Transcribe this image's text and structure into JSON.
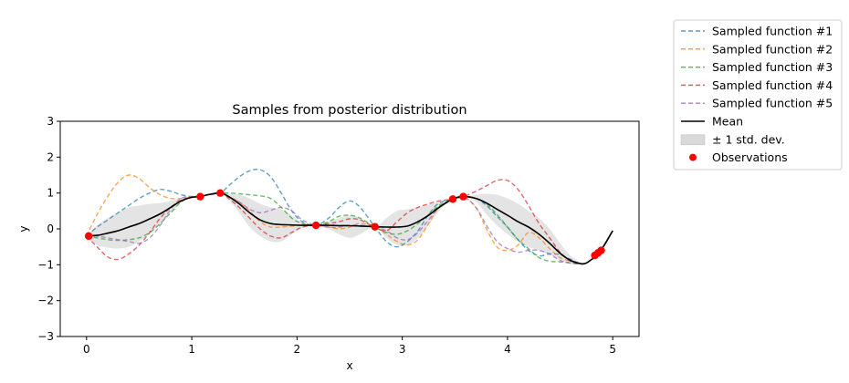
{
  "chart_data": {
    "type": "line",
    "title": "Samples from posterior distribution",
    "xlabel": "x",
    "ylabel": "y",
    "xlim": [
      -0.25,
      5.25
    ],
    "ylim": [
      -3,
      3
    ],
    "x_ticks": [
      0,
      1,
      2,
      3,
      4,
      5
    ],
    "y_ticks": [
      -3,
      -2,
      -1,
      0,
      1,
      2,
      3
    ],
    "grid": false,
    "legend_position": "outside-top-right",
    "x": [
      0,
      0.1,
      0.2,
      0.3,
      0.4,
      0.5,
      0.6,
      0.7,
      0.8,
      0.9,
      1.0,
      1.08,
      1.15,
      1.27,
      1.35,
      1.45,
      1.55,
      1.65,
      1.75,
      1.85,
      1.95,
      2.05,
      2.18,
      2.3,
      2.4,
      2.5,
      2.6,
      2.74,
      2.85,
      2.95,
      3.05,
      3.15,
      3.25,
      3.35,
      3.48,
      3.58,
      3.7,
      3.8,
      3.9,
      4.0,
      4.1,
      4.2,
      4.3,
      4.4,
      4.5,
      4.6,
      4.7,
      4.75,
      4.8,
      4.85,
      4.88,
      4.92,
      5.0
    ],
    "series": [
      {
        "name": "Sampled function #1",
        "color": "#1f77b4",
        "style": "dashed",
        "values": [
          -0.2,
          0.05,
          0.25,
          0.45,
          0.65,
          0.85,
          1.0,
          1.1,
          1.05,
          0.95,
          0.9,
          0.9,
          0.95,
          1.0,
          1.2,
          1.45,
          1.62,
          1.65,
          1.45,
          1.0,
          0.5,
          0.2,
          0.1,
          0.3,
          0.6,
          0.78,
          0.6,
          0.05,
          -0.35,
          -0.5,
          -0.35,
          -0.05,
          0.4,
          0.72,
          0.83,
          0.9,
          0.85,
          0.65,
          0.35,
          0.05,
          -0.3,
          -0.6,
          -0.75,
          -0.7,
          -0.72,
          -0.85,
          -0.98,
          -0.95,
          -0.85,
          -0.75,
          -0.6,
          -0.45,
          -0.05
        ]
      },
      {
        "name": "Sampled function #2",
        "color": "#ff7f0e",
        "style": "dashed",
        "values": [
          -0.2,
          0.4,
          0.9,
          1.3,
          1.5,
          1.4,
          1.15,
          0.95,
          0.85,
          0.85,
          0.88,
          0.9,
          0.95,
          1.0,
          0.9,
          0.75,
          0.5,
          0.2,
          0.05,
          0.05,
          0.08,
          0.1,
          0.1,
          0.05,
          0.0,
          0.05,
          0.15,
          0.05,
          -0.15,
          -0.35,
          -0.45,
          -0.3,
          0.15,
          0.6,
          0.83,
          0.9,
          0.6,
          0.0,
          -0.5,
          -0.6,
          -0.45,
          -0.1,
          -0.25,
          -0.55,
          -0.8,
          -0.9,
          -0.97,
          -0.95,
          -0.85,
          -0.75,
          -0.6,
          -0.45,
          -0.05
        ]
      },
      {
        "name": "Sampled function #3",
        "color": "#2ca02c",
        "style": "dashed",
        "values": [
          -0.2,
          -0.25,
          -0.3,
          -0.32,
          -0.3,
          -0.25,
          -0.1,
          0.15,
          0.45,
          0.75,
          0.9,
          0.9,
          0.95,
          1.0,
          1.0,
          0.98,
          0.95,
          0.92,
          0.85,
          0.6,
          0.3,
          0.15,
          0.1,
          0.2,
          0.35,
          0.38,
          0.3,
          0.05,
          -0.1,
          -0.15,
          -0.05,
          0.15,
          0.4,
          0.65,
          0.83,
          0.9,
          0.85,
          0.7,
          0.4,
          0.05,
          -0.3,
          -0.55,
          -0.8,
          -0.9,
          -0.92,
          -0.95,
          -0.98,
          -0.95,
          -0.85,
          -0.75,
          -0.6,
          -0.45,
          -0.05
        ]
      },
      {
        "name": "Sampled function #4",
        "color": "#d62728",
        "style": "dashed",
        "values": [
          -0.2,
          -0.5,
          -0.78,
          -0.85,
          -0.7,
          -0.45,
          -0.1,
          0.3,
          0.6,
          0.8,
          0.88,
          0.9,
          0.95,
          1.0,
          0.85,
          0.6,
          0.3,
          0.0,
          -0.2,
          -0.25,
          -0.1,
          0.05,
          0.1,
          0.15,
          0.2,
          0.28,
          0.25,
          0.05,
          -0.05,
          0.2,
          0.45,
          0.6,
          0.7,
          0.78,
          0.83,
          0.9,
          1.05,
          1.2,
          1.35,
          1.35,
          1.1,
          0.65,
          0.15,
          -0.25,
          -0.65,
          -0.9,
          -0.98,
          -0.95,
          -0.85,
          -0.75,
          -0.6,
          -0.45,
          -0.05
        ]
      },
      {
        "name": "Sampled function #5",
        "color": "#9467bd",
        "style": "dashed",
        "values": [
          -0.2,
          -0.2,
          -0.25,
          -0.3,
          -0.35,
          -0.4,
          -0.25,
          0.1,
          0.55,
          0.85,
          0.9,
          0.9,
          0.95,
          1.0,
          0.9,
          0.75,
          0.55,
          0.45,
          0.52,
          0.6,
          0.5,
          0.25,
          0.1,
          0.05,
          0.05,
          0.1,
          0.1,
          0.05,
          -0.05,
          -0.25,
          -0.3,
          -0.1,
          0.25,
          0.6,
          0.83,
          0.9,
          0.6,
          0.1,
          -0.35,
          -0.55,
          -0.65,
          -0.6,
          -0.6,
          -0.7,
          -0.88,
          -0.95,
          -0.97,
          -0.95,
          -0.85,
          -0.75,
          -0.6,
          -0.45,
          -0.05
        ]
      },
      {
        "name": "Mean",
        "color": "#000000",
        "style": "solid",
        "values": [
          -0.2,
          -0.18,
          -0.12,
          -0.05,
          0.05,
          0.15,
          0.28,
          0.42,
          0.6,
          0.78,
          0.88,
          0.9,
          0.95,
          1.0,
          0.9,
          0.7,
          0.45,
          0.25,
          0.15,
          0.12,
          0.11,
          0.1,
          0.1,
          0.1,
          0.09,
          0.09,
          0.08,
          0.06,
          0.05,
          0.05,
          0.08,
          0.2,
          0.38,
          0.6,
          0.83,
          0.9,
          0.85,
          0.72,
          0.55,
          0.38,
          0.2,
          0.05,
          -0.15,
          -0.4,
          -0.68,
          -0.88,
          -0.97,
          -0.95,
          -0.85,
          -0.75,
          -0.6,
          -0.45,
          -0.05
        ]
      }
    ],
    "band": {
      "name": "± 1 std. dev.",
      "color": "#d9d9d9",
      "lower": [
        -0.2,
        -0.45,
        -0.52,
        -0.55,
        -0.5,
        -0.35,
        -0.15,
        0.15,
        0.45,
        0.75,
        0.88,
        0.9,
        0.95,
        1.0,
        0.82,
        0.45,
        0.05,
        -0.2,
        -0.35,
        -0.35,
        -0.15,
        0.02,
        0.1,
        0.0,
        -0.15,
        -0.25,
        -0.15,
        0.06,
        -0.25,
        -0.45,
        -0.45,
        -0.25,
        0.1,
        0.5,
        0.83,
        0.9,
        0.75,
        0.4,
        0.1,
        -0.15,
        -0.35,
        -0.5,
        -0.6,
        -0.72,
        -0.88,
        -0.98,
        -0.99,
        -0.97,
        -0.87,
        -0.76,
        -0.6,
        -0.45,
        -0.05
      ],
      "upper": [
        -0.2,
        0.1,
        0.3,
        0.45,
        0.6,
        0.65,
        0.7,
        0.72,
        0.78,
        0.85,
        0.88,
        0.9,
        0.95,
        1.0,
        0.98,
        0.95,
        0.85,
        0.7,
        0.6,
        0.55,
        0.38,
        0.18,
        0.1,
        0.2,
        0.3,
        0.38,
        0.3,
        0.06,
        0.3,
        0.5,
        0.55,
        0.6,
        0.68,
        0.75,
        0.83,
        0.9,
        0.95,
        0.98,
        0.95,
        0.85,
        0.7,
        0.5,
        0.3,
        0.0,
        -0.4,
        -0.75,
        -0.95,
        -0.93,
        -0.83,
        -0.74,
        -0.6,
        -0.45,
        -0.05
      ]
    },
    "observations": {
      "name": "Observations",
      "color": "#ff0000",
      "x": [
        0.02,
        1.08,
        1.27,
        2.18,
        2.74,
        3.48,
        3.58,
        4.83,
        4.86,
        4.89
      ],
      "y": [
        -0.2,
        0.9,
        1.0,
        0.1,
        0.06,
        0.83,
        0.9,
        -0.74,
        -0.67,
        -0.6
      ]
    }
  }
}
